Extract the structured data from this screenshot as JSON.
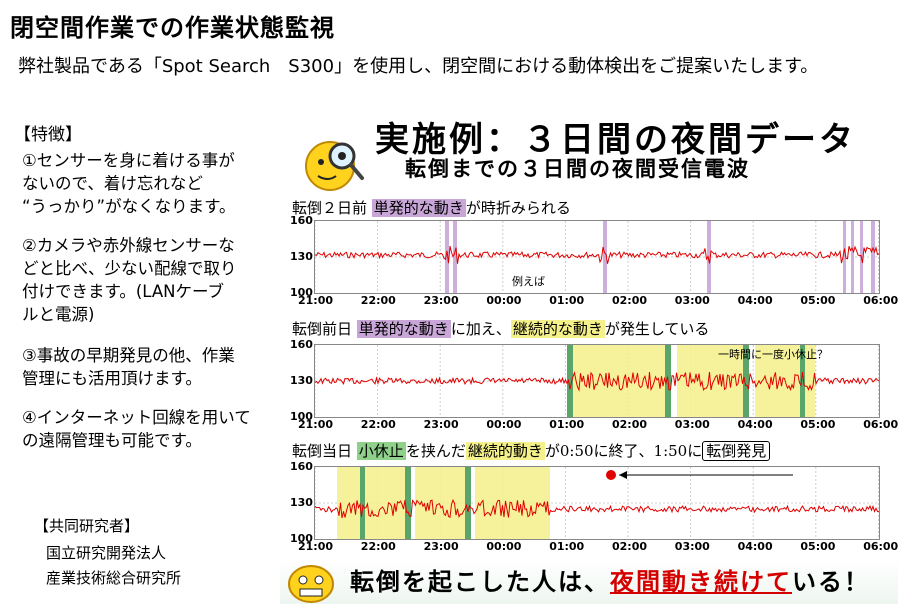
{
  "title": "閉空間作業での作業状態監視",
  "subtitle": "弊社製品である「Spot Search　S300」を使用し、閉空間における動体検出をご提案いたします。",
  "features": {
    "heading": "【特徴】",
    "items": [
      {
        "lines": [
          "①センサーを身に着ける事が",
          "ないので、着け忘れなど",
          "“うっかり”がなくなります。"
        ]
      },
      {
        "lines": [
          "②カメラや赤外線センサーな",
          "どと比べ、少ない配線で取り",
          "付けできます。(LANケーブ",
          "ルと電源)"
        ]
      },
      {
        "lines": [
          "③事故の早期発見の他、作業",
          "管理にも活用頂けます。"
        ]
      },
      {
        "lines": [
          "④インターネット回線を用いて",
          "の遠隔管理も可能です。"
        ]
      }
    ]
  },
  "collaborators": {
    "heading": "【共同研究者】",
    "lines": [
      "国立研究開発法人",
      "産業技術総合研究所"
    ]
  },
  "example": {
    "title": "実施例：３日間の夜間データ",
    "subtitle": "転倒までの３日間の夜間受信電波",
    "day1": {
      "label": "転倒２日前",
      "hl1": "単発的な動き",
      "rest": "が時折みられる",
      "note": "例えば"
    },
    "day2": {
      "label": "転倒前日",
      "hl1": "単発的な動き",
      "mid": "に加え、",
      "hl2": "継続的な動き",
      "rest": "が発生している",
      "note": "一時間に一度小休止？"
    },
    "day3": {
      "label": "転倒当日",
      "hl1": "小休止",
      "mid": "を挟んだ",
      "hl2": "継続的動き",
      "rest": "が0:50に終了、1:50に",
      "boxed": "転倒発見"
    },
    "conclusion_pre": "転倒を起こした人は、",
    "conclusion_em": "夜間動き続けて",
    "conclusion_post": "いる！"
  },
  "axis": {
    "yticks": [
      "160",
      "130",
      "100"
    ],
    "xticks": [
      "21:00",
      "22:00",
      "23:00",
      "00:00",
      "01:00",
      "02:00",
      "03:00",
      "04:00",
      "05:00",
      "06:00"
    ]
  },
  "colors": {
    "signal": "#e00000",
    "signal_active": "#e87400",
    "purple": "#c9a6d8",
    "yellow": "#f4f08a",
    "green": "#5aa66a"
  }
}
